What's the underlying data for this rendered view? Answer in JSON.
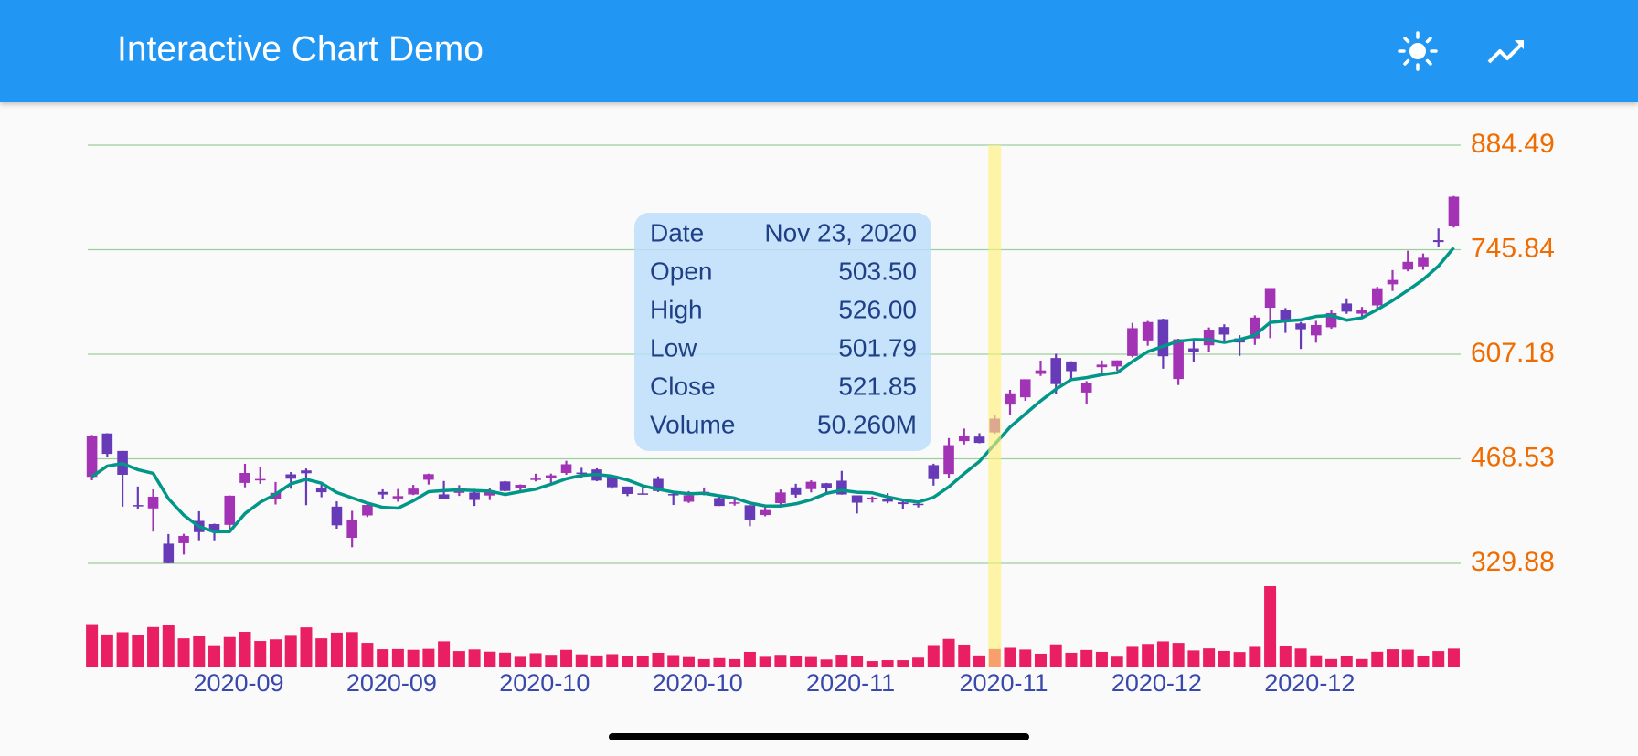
{
  "app_bar": {
    "title": "Interactive Chart Demo"
  },
  "chart_data": {
    "type": "candlestick",
    "categories": [
      null,
      null,
      null,
      null,
      null,
      null,
      null,
      null,
      null,
      null,
      "2020-09",
      null,
      null,
      null,
      null,
      null,
      null,
      null,
      null,
      null,
      "2020-09",
      null,
      null,
      null,
      null,
      null,
      null,
      null,
      null,
      null,
      "2020-10",
      null,
      null,
      null,
      null,
      null,
      null,
      null,
      null,
      null,
      "2020-10",
      null,
      null,
      null,
      null,
      null,
      null,
      null,
      null,
      null,
      "2020-11",
      null,
      null,
      null,
      null,
      null,
      null,
      null,
      null,
      null,
      "2020-11",
      null,
      null,
      null,
      null,
      null,
      null,
      null,
      null,
      null,
      "2020-12",
      null,
      null,
      null,
      null,
      null,
      null,
      null,
      null,
      null,
      "2020-12",
      null,
      null,
      null,
      null,
      null,
      null,
      null,
      null,
      null
    ],
    "open": [
      444.61,
      502.14,
      478.99,
      407.23,
      402.81,
      356,
      356.6,
      386.21,
      381.94,
      380.95,
      436.56,
      439.87,
      415.6,
      447.94,
      453.13,
      429.6,
      405.16,
      363.8,
      393.47,
      424.62,
      416,
      421.32,
      440.76,
      421.39,
      423.35,
      423.79,
      419.87,
      438.44,
      430.13,
      442,
      443.35,
      449.78,
      450.31,
      454.44,
      446.24,
      431.75,
      422.7,
      441.92,
      421.84,
      411.63,
      423.76,
      416.48,
      409.96,
      406.9,
      394,
      409.73,
      430.62,
      428.3,
      436.1,
      439.5,
      420.09,
      416.45,
      415.05,
      410.85,
      408.93,
      460.17,
      448.35,
      492,
      497.99,
      503.5,
      540.4,
      550.06,
      581.16,
      602.21,
      597.59,
      556.44,
      590.02,
      591.01,
      604.92,
      625.51,
      653.69,
      574.37,
      615.01,
      619,
      643.28,
      628.23,
      628.19,
      668.9,
      666.24,
      648,
      632.2,
      642.99,
      674.51,
      661,
      672,
      699.99,
      719.46,
      723.66,
      758.49,
      777.63
    ],
    "high": [
      500.14,
      502.49,
      479.04,
      431.8,
      428,
      368.74,
      369,
      398.99,
      382.5,
      420,
      461.94,
      457.79,
      437.79,
      451,
      455.68,
      437.76,
      412.15,
      399.5,
      408.73,
      428.08,
      428.5,
      433.93,
      448.88,
      439.13,
      433.64,
      428.78,
      429.9,
      439,
      434.59,
      448.74,
      448.89,
      465.9,
      456.57,
      455.95,
      447,
      431.75,
      432.95,
      445.23,
      422.89,
      425.76,
      430.5,
      418.6,
      418.06,
      407.59,
      406.98,
      427.77,
      435.4,
      440,
      436.57,
      452.5,
      420.09,
      418.7,
      423,
      412.53,
      412.45,
      462,
      496,
      508.61,
      502.5,
      526,
      559.99,
      574,
      598.78,
      607.8,
      597.85,
      571.54,
      598.97,
      599.04,
      648.79,
      651.28,
      654.32,
      627.75,
      624,
      642.75,
      646.9,
      632.5,
      658.82,
      695,
      668.5,
      649.88,
      651.5,
      666.09,
      681.4,
      669.9,
      696.6,
      718.72,
      744.49,
      740.84,
      774,
      816.99
    ],
    "low": [
      440.11,
      470.51,
      405.12,
      402,
      372.02,
      329.88,
      341.51,
      360.56,
      360.5,
      373.3,
      430.7,
      435.31,
      408,
      428.8,
      407.07,
      417.6,
      375.88,
      351.3,
      391.3,
      415.55,
      411.6,
      420.47,
      434.42,
      415,
      419.33,
      406.05,
      413.85,
      425.3,
      426.46,
      438.58,
      436.6,
      447.35,
      442.5,
      438.85,
      428.87,
      419.05,
      421.25,
      424.51,
      407.38,
      410,
      420.1,
      406,
      406.46,
      379.11,
      392.3,
      406.69,
      417.1,
      424,
      424.28,
      421,
      396.03,
      410.58,
      409.52,
      401.66,
      404.09,
      433.01,
      443.5,
      487.57,
      489.06,
      501.79,
      526.2,
      545.37,
      578.45,
      554.51,
      572.05,
      541.21,
      582.43,
      585.5,
      603.05,
      618.5,
      588,
      566.34,
      596.8,
      610.2,
      623.8,
      605,
      619.5,
      628.54,
      635.52,
      614.23,
      622.57,
      641,
      660.8,
      655,
      668.36,
      691.12,
      717.19,
      719.2,
      749.1,
      775.2
    ],
    "close": [
      498.32,
      475.05,
      447.37,
      407,
      418.32,
      330.21,
      366.28,
      371.34,
      372.72,
      419.62,
      449.76,
      441.76,
      423.43,
      442.15,
      449.39,
      424.23,
      380.36,
      387.79,
      407.34,
      421.2,
      419.07,
      429.01,
      448.16,
      415.09,
      425.68,
      413.98,
      425.3,
      425.92,
      434,
      442.3,
      446.65,
      461.3,
      448.88,
      439.67,
      430.83,
      421.94,
      422.64,
      425.79,
      420.63,
      420.28,
      424.68,
      406.02,
      410.83,
      388.04,
      400.51,
      423.9,
      420.98,
      438.09,
      429.95,
      421.26,
      410.36,
      417.13,
      411.76,
      408.5,
      408.09,
      441.61,
      486.64,
      499.27,
      489.61,
      521.85,
      555.38,
      574,
      585.76,
      567.6,
      584.76,
      568.82,
      593.38,
      599.04,
      641.76,
      649.88,
      604.48,
      627.07,
      609.99,
      639.83,
      633.25,
      622.77,
      655.9,
      695,
      649.86,
      640.34,
      645.98,
      661.77,
      663.69,
      665.99,
      694.78,
      705.67,
      729.77,
      735.11,
      755.98,
      816.04
    ],
    "volume": [
      118.37,
      90.12,
      96.18,
      87.6,
      110.32,
      115.47,
      79.47,
      84.93,
      60.72,
      83.02,
      97.3,
      72.28,
      76.78,
      86.41,
      109.48,
      79.58,
      95.07,
      96.56,
      67.21,
      49.72,
      50.22,
      48.15,
      50.74,
      71.43,
      44.72,
      49.15,
      43.13,
      40.42,
      28.93,
      38.79,
      34.46,
      48.05,
      35.67,
      32.78,
      36.29,
      31.66,
      32.37,
      39.99,
      33.72,
      28.21,
      22.69,
      25.45,
      22.66,
      42.51,
      29.02,
      34.35,
      32.11,
      28.41,
      21.71,
      34.83,
      30.28,
      17.36,
      19.86,
      19.77,
      26.84,
      61.19,
      78.04,
      62.48,
      32.81,
      50.26,
      53.65,
      48.93,
      37.56,
      63,
      40.1,
      47.78,
      42.55,
      29.4,
      56.31,
      64.27,
      71.29,
      67.08,
      46.48,
      52.04,
      45.07,
      42.1,
      56.27,
      222.13,
      58.05,
      51.72,
      33.17,
      22.87,
      32.28,
      22.91,
      42.85,
      49.65,
      48.64,
      32.25,
      44.7,
      51.5
    ],
    "moving_average": {
      "color": "#009688",
      "values": [
        444.81,
        458.89,
        462.23,
        454.08,
        449.21,
        415.59,
        393.84,
        378.63,
        371.77,
        372.03,
        395.94,
        411.04,
        421.46,
        435.34,
        441.3,
        436.19,
        423.91,
        416.78,
        409.82,
        404.18,
        403.15,
        412.88,
        424.96,
        426.51,
        427.4,
        426.38,
        425.64,
        421.19,
        424.98,
        428.3,
        434.83,
        442.03,
        446.63,
        447.76,
        445.47,
        440.52,
        432.79,
        428.17,
        424.37,
        422.26,
        422.8,
        419.48,
        416.49,
        409.97,
        406.02,
        405.86,
        408.85,
        414.3,
        422.69,
        426.84,
        424.13,
        423.36,
        418.09,
        413.8,
        411.17,
        417.42,
        431.32,
        448.82,
        465.04,
        487.8,
        510.55,
        528.02,
        545.32,
        560.92,
        573.5,
        576.19,
        580.06,
        582.72,
        597.55,
        610.58,
        617.71,
        624.45,
        626.64,
        626.25,
        622.92,
        626.58,
        632.35,
        649.35,
        651.36,
        652.77,
        657.42,
        658.59,
        652.33,
        655.55,
        666.44,
        678.38,
        691.98,
        706.26,
        724.26,
        748.51
      ]
    },
    "up_color": "#a233b5",
    "down_color": "#673ab7",
    "volume_color": "#e91e63",
    "ylim": [
      329.88,
      884.49
    ],
    "yticks": [
      329.88,
      468.53,
      607.18,
      745.84,
      884.49
    ],
    "volume_lim": [
      0,
      222.13
    ],
    "grid": true,
    "selected_index": 59,
    "tooltip": {
      "rows": [
        {
          "label": "Date",
          "value": "Nov 23, 2020"
        },
        {
          "label": "Open",
          "value": "503.50"
        },
        {
          "label": "High",
          "value": "526.00"
        },
        {
          "label": "Low",
          "value": "501.79"
        },
        {
          "label": "Close",
          "value": "521.85"
        },
        {
          "label": "Volume",
          "value": "50.260M"
        }
      ]
    }
  }
}
